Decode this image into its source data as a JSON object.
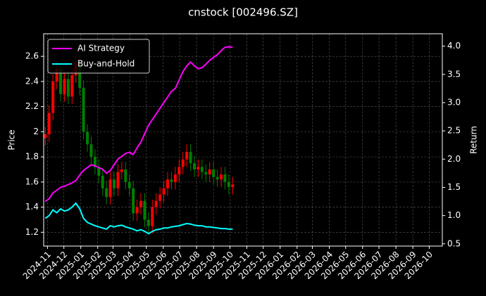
{
  "chart_data": {
    "type": "candlestick",
    "title": "cnstock [002496.SZ]",
    "ylabel": "Price",
    "y2label": "Return",
    "x": [
      "2024-10-28",
      "2024-11-04",
      "2024-11-11",
      "2024-11-18",
      "2024-11-25",
      "2024-12-02",
      "2024-12-09",
      "2024-12-16",
      "2024-12-23",
      "2024-12-30",
      "2025-01-06",
      "2025-01-13",
      "2025-01-20",
      "2025-01-27",
      "2025-02-03",
      "2025-02-10",
      "2025-02-17",
      "2025-02-24",
      "2025-03-03",
      "2025-03-10",
      "2025-03-17",
      "2025-03-24",
      "2025-03-31",
      "2025-04-07",
      "2025-04-14",
      "2025-04-21",
      "2025-04-28",
      "2025-05-05",
      "2025-05-12",
      "2025-05-19",
      "2025-05-26",
      "2025-06-02",
      "2025-06-09",
      "2025-06-16",
      "2025-06-23",
      "2025-06-30",
      "2025-07-07",
      "2025-07-14",
      "2025-07-21",
      "2025-07-28",
      "2025-08-04",
      "2025-08-11",
      "2025-08-18",
      "2025-08-25",
      "2025-09-01",
      "2025-09-08",
      "2025-09-15",
      "2025-09-22",
      "2025-09-29",
      "2025-10-06"
    ],
    "open": [
      1.95,
      1.98,
      2.15,
      2.4,
      2.5,
      2.3,
      2.42,
      2.28,
      2.45,
      2.55,
      2.35,
      2.0,
      1.9,
      1.8,
      1.72,
      1.65,
      1.55,
      1.48,
      1.62,
      1.55,
      1.68,
      1.7,
      1.6,
      1.55,
      1.35,
      1.4,
      1.45,
      1.3,
      1.25,
      1.4,
      1.45,
      1.5,
      1.55,
      1.62,
      1.6,
      1.66,
      1.72,
      1.78,
      1.84,
      1.75,
      1.7,
      1.72,
      1.68,
      1.66,
      1.7,
      1.64,
      1.62,
      1.66,
      1.6,
      1.56
    ],
    "high": [
      2.04,
      2.21,
      2.46,
      2.56,
      2.56,
      2.48,
      2.48,
      2.51,
      2.61,
      2.61,
      2.41,
      2.06,
      1.96,
      1.86,
      1.78,
      1.71,
      1.61,
      1.68,
      1.68,
      1.74,
      1.76,
      1.76,
      1.66,
      1.61,
      1.46,
      1.51,
      1.51,
      1.36,
      1.46,
      1.51,
      1.56,
      1.61,
      1.68,
      1.68,
      1.72,
      1.78,
      1.84,
      1.9,
      1.9,
      1.81,
      1.78,
      1.78,
      1.74,
      1.76,
      1.76,
      1.7,
      1.72,
      1.72,
      1.66,
      1.64
    ],
    "low": [
      1.89,
      1.92,
      2.09,
      2.34,
      2.24,
      2.24,
      2.22,
      2.22,
      2.39,
      2.29,
      1.94,
      1.84,
      1.74,
      1.66,
      1.59,
      1.49,
      1.42,
      1.42,
      1.49,
      1.49,
      1.62,
      1.54,
      1.49,
      1.29,
      1.29,
      1.34,
      1.24,
      1.19,
      1.19,
      1.34,
      1.39,
      1.44,
      1.49,
      1.54,
      1.54,
      1.6,
      1.66,
      1.72,
      1.69,
      1.64,
      1.64,
      1.62,
      1.6,
      1.6,
      1.58,
      1.56,
      1.56,
      1.54,
      1.5,
      1.5
    ],
    "close": [
      1.98,
      2.15,
      2.4,
      2.5,
      2.3,
      2.42,
      2.28,
      2.45,
      2.55,
      2.35,
      2.0,
      1.9,
      1.8,
      1.72,
      1.65,
      1.55,
      1.48,
      1.62,
      1.55,
      1.68,
      1.7,
      1.6,
      1.55,
      1.35,
      1.4,
      1.45,
      1.3,
      1.25,
      1.4,
      1.45,
      1.5,
      1.55,
      1.62,
      1.6,
      1.66,
      1.72,
      1.78,
      1.84,
      1.75,
      1.7,
      1.72,
      1.68,
      1.66,
      1.7,
      1.64,
      1.62,
      1.66,
      1.6,
      1.56,
      1.58
    ],
    "up_color": "#ff0000",
    "down_color": "#008000",
    "series": [
      {
        "name": "AI Strategy",
        "color": "#ff00ff",
        "axis": "y2",
        "values": [
          1.25,
          1.3,
          1.4,
          1.45,
          1.5,
          1.52,
          1.55,
          1.58,
          1.62,
          1.72,
          1.8,
          1.85,
          1.9,
          1.88,
          1.85,
          1.82,
          1.75,
          1.8,
          1.9,
          2.0,
          2.05,
          2.1,
          2.12,
          2.08,
          2.2,
          2.3,
          2.45,
          2.6,
          2.7,
          2.8,
          2.9,
          3.0,
          3.1,
          3.2,
          3.25,
          3.4,
          3.55,
          3.65,
          3.72,
          3.65,
          3.6,
          3.62,
          3.68,
          3.75,
          3.8,
          3.85,
          3.92,
          3.98,
          3.99,
          3.98
        ]
      },
      {
        "name": "Buy-and-Hold",
        "color": "#00ffff",
        "axis": "y2",
        "values": [
          0.95,
          1.0,
          1.1,
          1.05,
          1.12,
          1.08,
          1.1,
          1.15,
          1.22,
          1.12,
          0.95,
          0.88,
          0.85,
          0.82,
          0.8,
          0.78,
          0.76,
          0.82,
          0.8,
          0.82,
          0.83,
          0.8,
          0.78,
          0.76,
          0.73,
          0.75,
          0.72,
          0.68,
          0.72,
          0.75,
          0.76,
          0.78,
          0.78,
          0.8,
          0.81,
          0.82,
          0.84,
          0.86,
          0.85,
          0.83,
          0.82,
          0.82,
          0.8,
          0.8,
          0.79,
          0.78,
          0.77,
          0.77,
          0.76,
          0.76
        ]
      }
    ],
    "xlim": [
      "2024-10-25",
      "2026-10-25"
    ],
    "xticks": [
      "2024-11",
      "2024-12",
      "2025-01",
      "2025-02",
      "2025-03",
      "2025-04",
      "2025-05",
      "2025-06",
      "2025-07",
      "2025-08",
      "2025-09",
      "2025-10",
      "2025-11",
      "2025-12",
      "2026-01",
      "2026-02",
      "2026-03",
      "2026-04",
      "2026-05",
      "2026-06",
      "2026-07",
      "2026-08",
      "2026-09",
      "2026-10"
    ],
    "ylim": [
      1.09,
      2.78
    ],
    "yticks": [
      1.2,
      1.4,
      1.6,
      1.8,
      2.0,
      2.2,
      2.4,
      2.6
    ],
    "y2lim": [
      0.46,
      4.22
    ],
    "y2ticks": [
      0.5,
      {
        "value": 1,
        "label": "1.0"
      },
      1.5,
      {
        "value": 2,
        "label": "2.0"
      },
      2.5,
      {
        "value": 3,
        "label": "3.0"
      },
      3.5,
      {
        "value": 4,
        "label": "4.0"
      }
    ],
    "grid": true,
    "legend": "upper left"
  }
}
